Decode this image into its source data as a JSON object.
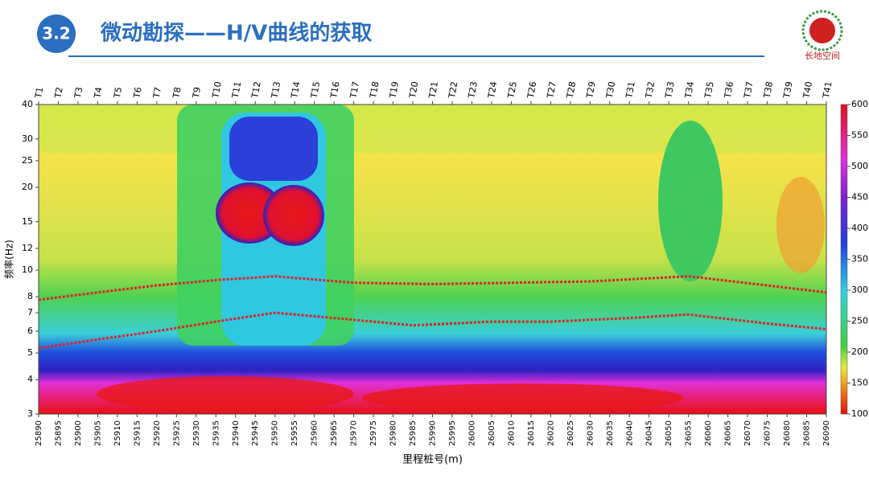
{
  "header": {
    "section": "3.2",
    "title": "微动勘探——H/V曲线的获取",
    "logo_text": "长地空间"
  },
  "chart_data": {
    "type": "contour",
    "stations": [
      "T1",
      "T2",
      "T3",
      "T4",
      "T5",
      "T6",
      "T7",
      "T8",
      "T9",
      "T10",
      "T11",
      "T12",
      "T13",
      "T14",
      "T15",
      "T16",
      "T17",
      "T18",
      "T19",
      "T20",
      "T21",
      "T22",
      "T23",
      "T24",
      "T25",
      "T26",
      "T27",
      "T28",
      "T29",
      "T30",
      "T31",
      "T32",
      "T33",
      "T34",
      "T35",
      "T36",
      "T37",
      "T38",
      "T39",
      "T40",
      "T41"
    ],
    "x_label": "里程桩号(m)",
    "y_label": "频率(Hz)",
    "xlim": [
      25890,
      26090
    ],
    "xticks": [
      25890,
      25895,
      25900,
      25905,
      25910,
      25915,
      25920,
      25925,
      25930,
      25935,
      25940,
      25945,
      25950,
      25955,
      25960,
      25965,
      25970,
      25975,
      25980,
      25985,
      25990,
      25995,
      26000,
      26005,
      26010,
      26015,
      26020,
      26025,
      26030,
      26035,
      26040,
      26045,
      26050,
      26055,
      26060,
      26065,
      26070,
      26075,
      26080,
      26085,
      26090
    ],
    "ylim": [
      3,
      40
    ],
    "y_log": true,
    "yticks": [
      3,
      4,
      5,
      6,
      7,
      8,
      10,
      12,
      15,
      20,
      25,
      30,
      40
    ],
    "colorbar_lim": [
      100,
      600
    ],
    "colorbar_ticks": [
      100,
      150,
      200,
      250,
      300,
      350,
      400,
      450,
      500,
      550,
      600
    ],
    "series": [
      {
        "color": "#e0202a",
        "x": [
          25890,
          25905,
          25920,
          25935,
          25950,
          25970,
          25990,
          26010,
          26030,
          26055,
          26075,
          26090
        ],
        "values": [
          7.8,
          8.3,
          8.8,
          9.2,
          9.5,
          9.0,
          8.9,
          9.0,
          9.1,
          9.5,
          8.8,
          8.3
        ]
      },
      {
        "color": "#e0202a",
        "x": [
          25890,
          25905,
          25920,
          25935,
          25950,
          25970,
          25985,
          26005,
          26020,
          26040,
          26055,
          26075,
          26090
        ],
        "values": [
          5.2,
          5.6,
          6.0,
          6.5,
          7.0,
          6.6,
          6.3,
          6.5,
          6.5,
          6.7,
          6.9,
          6.4,
          6.1
        ]
      }
    ]
  }
}
